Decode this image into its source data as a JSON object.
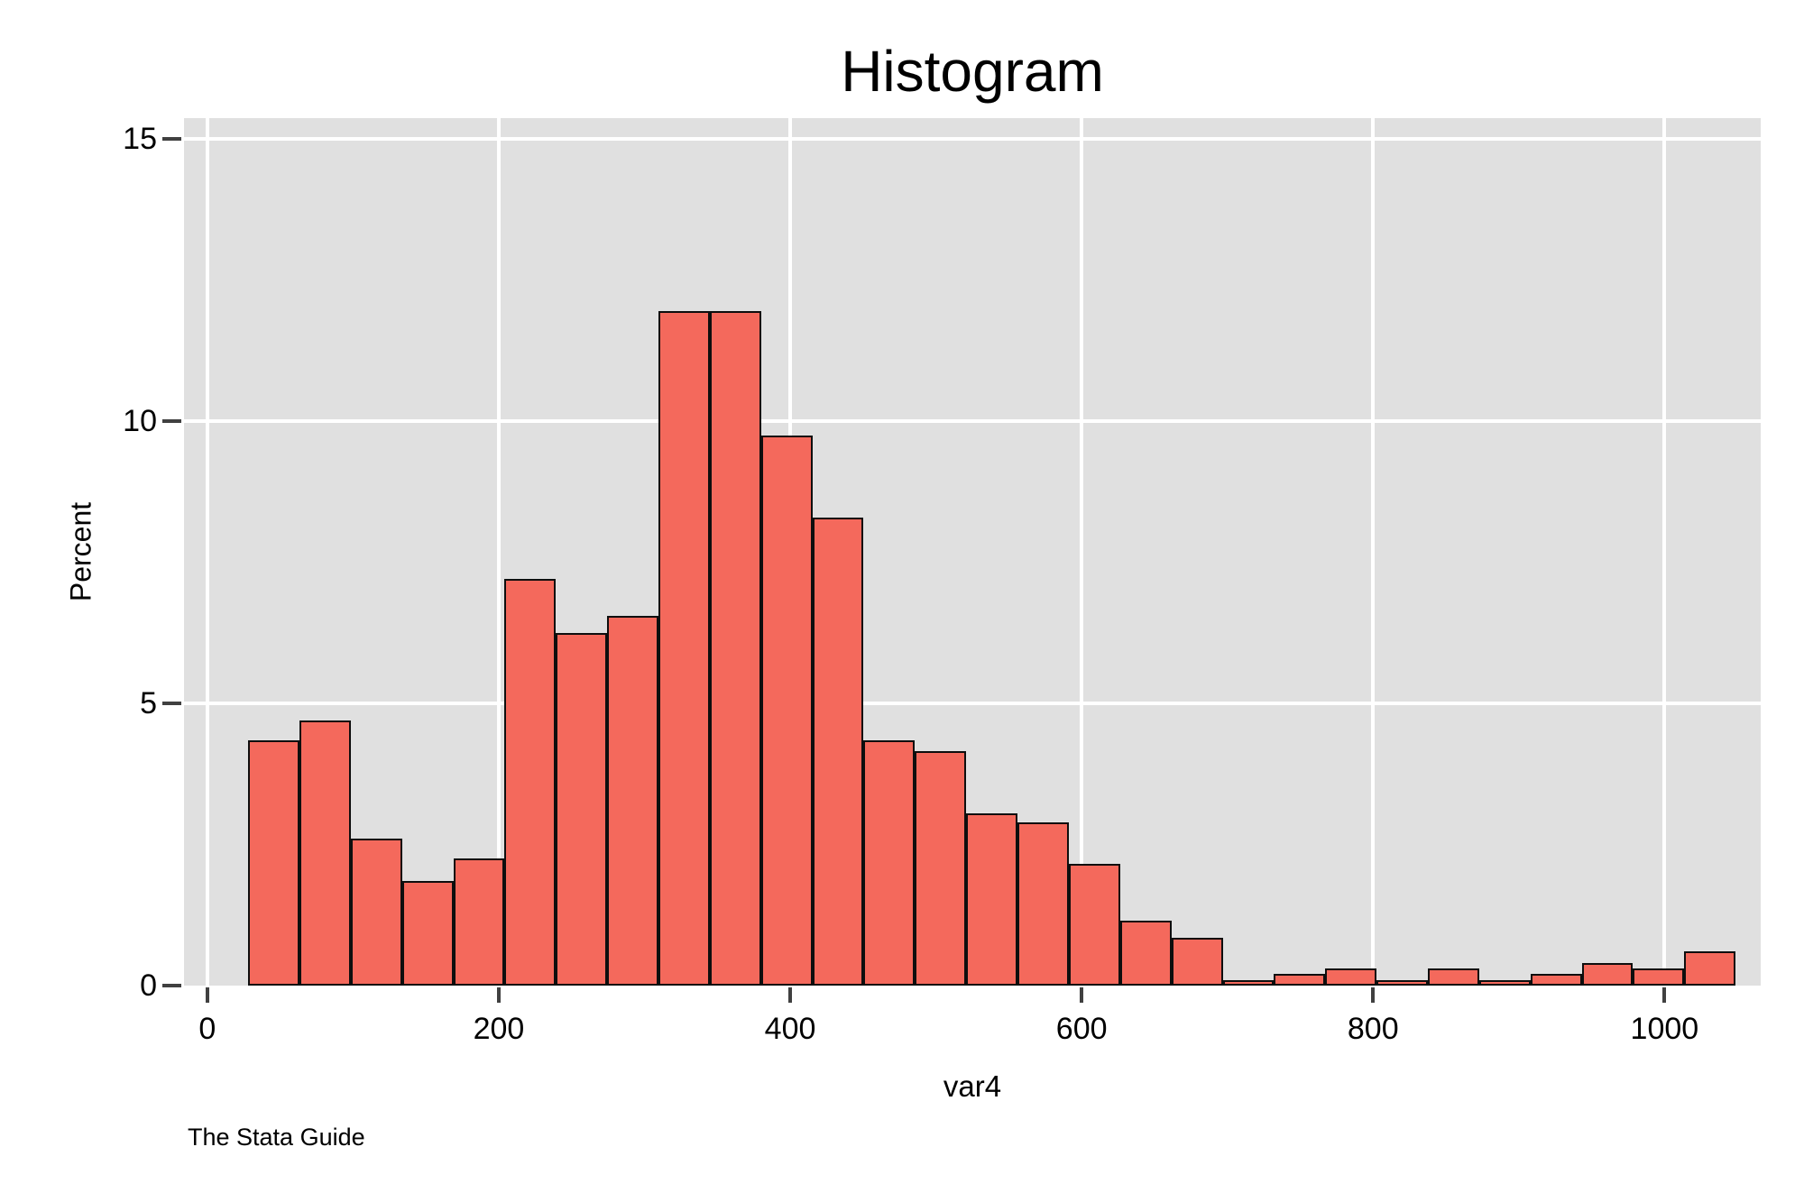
{
  "title": "Histogram",
  "y_axis": {
    "label": "Percent",
    "ticks": [
      0,
      5,
      10,
      15
    ]
  },
  "x_axis": {
    "label": "var4",
    "ticks": [
      0,
      200,
      400,
      600,
      800,
      1000
    ]
  },
  "footer": "The Stata Guide",
  "colors": {
    "bar_fill": "#f4695c",
    "bar_border": "#0e0e0e",
    "plot_bg": "#e0e0e0",
    "gridline": "#ffffff",
    "tick": "#404040",
    "text": "#000000"
  },
  "chart_data": {
    "type": "bar",
    "title": "Histogram",
    "xlabel": "var4",
    "ylabel": "Percent",
    "legend": false,
    "grid": true,
    "bin_start": 28,
    "bin_width": 35.2,
    "xlim": [
      -16,
      1066
    ],
    "ylim": [
      0,
      15.37
    ],
    "x_ticks": [
      0,
      200,
      400,
      600,
      800,
      1000
    ],
    "y_ticks": [
      0,
      5,
      10,
      15
    ],
    "values": [
      4.35,
      4.7,
      2.6,
      1.85,
      2.25,
      7.2,
      6.25,
      6.55,
      11.95,
      11.95,
      9.75,
      8.3,
      4.35,
      4.15,
      3.05,
      2.9,
      2.15,
      1.15,
      0.85,
      0.1,
      0.2,
      0.3,
      0.1,
      0.3,
      0.1,
      0.2,
      0.4,
      0.3,
      0.6
    ]
  }
}
